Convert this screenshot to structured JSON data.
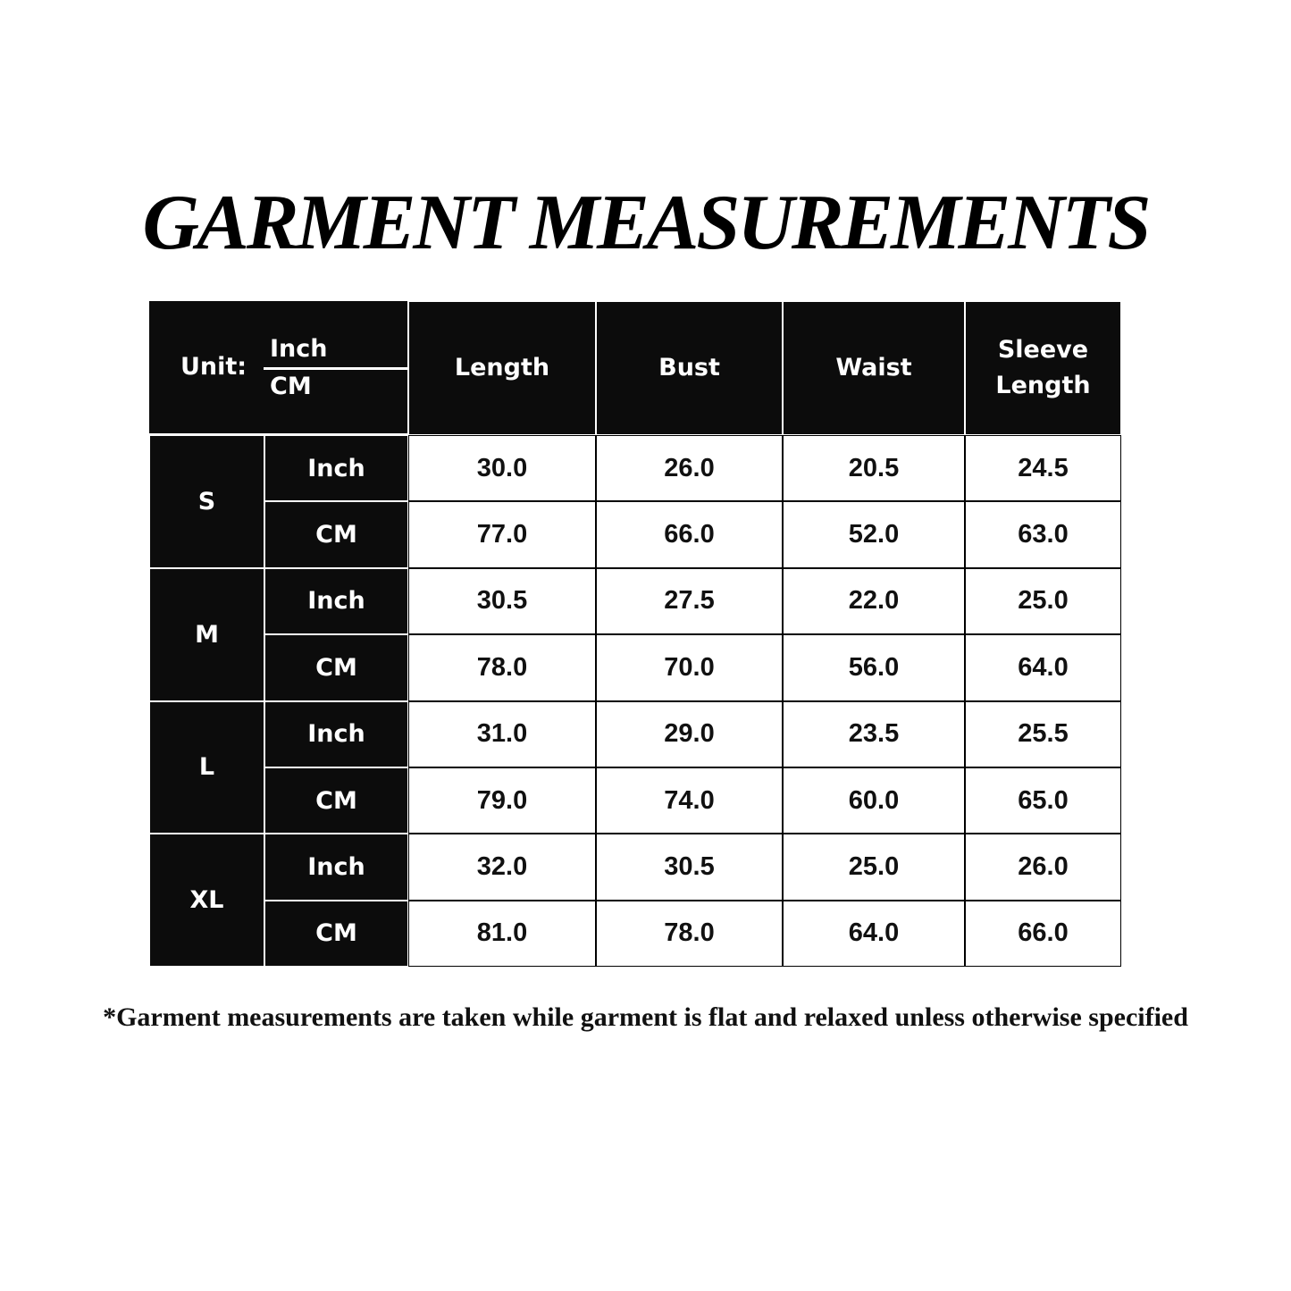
{
  "title": "GARMENT MEASUREMENTS",
  "header": {
    "unit_label": "Unit:",
    "unit_inch": "Inch",
    "unit_cm": "CM",
    "columns": [
      "Length",
      "Bust",
      "Waist",
      "Sleeve\nLength"
    ]
  },
  "sizes": [
    {
      "size": "S",
      "rows": [
        {
          "unit": "Inch",
          "values": [
            "30.0",
            "26.0",
            "20.5",
            "24.5"
          ]
        },
        {
          "unit": "CM",
          "values": [
            "77.0",
            "66.0",
            "52.0",
            "63.0"
          ]
        }
      ]
    },
    {
      "size": "M",
      "rows": [
        {
          "unit": "Inch",
          "values": [
            "30.5",
            "27.5",
            "22.0",
            "25.0"
          ]
        },
        {
          "unit": "CM",
          "values": [
            "78.0",
            "70.0",
            "56.0",
            "64.0"
          ]
        }
      ]
    },
    {
      "size": "L",
      "rows": [
        {
          "unit": "Inch",
          "values": [
            "31.0",
            "29.0",
            "23.5",
            "25.5"
          ]
        },
        {
          "unit": "CM",
          "values": [
            "79.0",
            "74.0",
            "60.0",
            "65.0"
          ]
        }
      ]
    },
    {
      "size": "XL",
      "rows": [
        {
          "unit": "Inch",
          "values": [
            "32.0",
            "30.5",
            "25.0",
            "26.0"
          ]
        },
        {
          "unit": "CM",
          "values": [
            "81.0",
            "78.0",
            "64.0",
            "66.0"
          ]
        }
      ]
    }
  ],
  "footnote": "*Garment measurements are taken while garment is flat and relaxed unless otherwise specified",
  "colors": {
    "header_bg": "#0c0c0c",
    "cell_bg": "#ffffff"
  }
}
